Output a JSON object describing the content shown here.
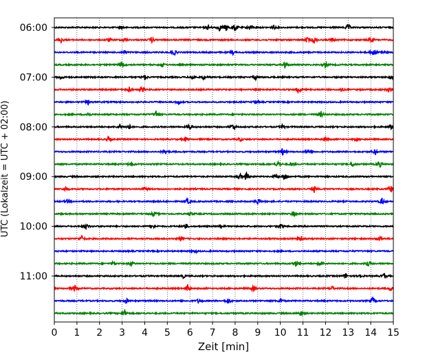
{
  "chart_data": {
    "type": "line",
    "title": "",
    "xlabel": "Zeit  [min]",
    "ylabel": "UTC (Lokalzeit = UTC + 02:00)",
    "xlim": [
      0,
      15
    ],
    "x_ticks": [
      0,
      1,
      2,
      3,
      4,
      5,
      6,
      7,
      8,
      9,
      10,
      11,
      12,
      13,
      14,
      15
    ],
    "grid": "vertical dotted at each minute",
    "trace_interval_min": 15,
    "start_time": "06:00",
    "time_labels": [
      "06:00",
      "07:00",
      "08:00",
      "09:00",
      "10:00",
      "11:00"
    ],
    "trace_colors": [
      "#000000",
      "#ff0000",
      "#0000ff",
      "#008000"
    ],
    "series": [
      {
        "values": [
          [
            3.0,
            0.5
          ],
          [
            6.8,
            0.6
          ],
          [
            7.3,
            0.8
          ],
          [
            7.6,
            0.9
          ],
          [
            8.0,
            1.0
          ],
          [
            8.7,
            0.8
          ],
          [
            9.7,
            0.5
          ],
          [
            13.0,
            0.9
          ]
        ]
      },
      {
        "values": [
          [
            0.3,
            0.6
          ],
          [
            2.4,
            0.5
          ],
          [
            3.1,
            0.5
          ],
          [
            4.3,
            0.7
          ],
          [
            11.2,
            0.6
          ],
          [
            11.5,
            0.8
          ],
          [
            12.3,
            0.5
          ],
          [
            14.0,
            0.7
          ]
        ]
      },
      {
        "values": [
          [
            3.1,
            0.5
          ],
          [
            5.3,
            0.7
          ],
          [
            7.9,
            0.5
          ],
          [
            14.1,
            0.9
          ],
          [
            14.5,
            0.6
          ]
        ]
      },
      {
        "values": [
          [
            3.0,
            0.8
          ],
          [
            4.8,
            0.5
          ],
          [
            10.2,
            0.9
          ],
          [
            12.0,
            0.6
          ]
        ]
      },
      {
        "values": [
          [
            0.3,
            0.6
          ],
          [
            4.0,
            0.6
          ],
          [
            6.1,
            0.7
          ],
          [
            6.6,
            0.5
          ],
          [
            8.9,
            0.6
          ],
          [
            14.9,
            0.5
          ]
        ]
      },
      {
        "values": [
          [
            3.3,
            0.8
          ],
          [
            3.9,
            0.8
          ],
          [
            10.8,
            0.8
          ],
          [
            12.7,
            0.5
          ],
          [
            14.8,
            0.5
          ]
        ]
      },
      {
        "values": [
          [
            1.5,
            0.5
          ],
          [
            5.5,
            0.5
          ],
          [
            8.9,
            0.5
          ]
        ]
      },
      {
        "values": [
          [
            1.5,
            0.5
          ],
          [
            4.5,
            1.0
          ],
          [
            11.8,
            0.7
          ]
        ]
      },
      {
        "values": [
          [
            2.9,
            0.6
          ],
          [
            3.3,
            0.6
          ],
          [
            6.0,
            0.8
          ],
          [
            7.9,
            0.8
          ],
          [
            10.1,
            0.6
          ],
          [
            14.9,
            0.5
          ]
        ]
      },
      {
        "values": [
          [
            2.4,
            0.7
          ],
          [
            5.8,
            0.6
          ],
          [
            8.2,
            0.5
          ],
          [
            12.0,
            0.6
          ],
          [
            13.4,
            0.5
          ]
        ]
      },
      {
        "values": [
          [
            4.9,
            0.6
          ],
          [
            10.1,
            0.9
          ],
          [
            11.2,
            0.5
          ],
          [
            14.2,
            0.7
          ]
        ]
      },
      {
        "values": [
          [
            3.4,
            0.6
          ],
          [
            9.9,
            0.8
          ],
          [
            10.5,
            0.5
          ],
          [
            13.2,
            0.6
          ],
          [
            14.4,
            0.7
          ]
        ]
      },
      {
        "values": [
          [
            8.2,
            0.8
          ],
          [
            8.5,
            1.0
          ],
          [
            9.8,
            0.6
          ],
          [
            10.2,
            1.0
          ]
        ]
      },
      {
        "values": [
          [
            0.5,
            0.6
          ],
          [
            4.0,
            0.5
          ],
          [
            11.5,
            0.8
          ],
          [
            14.9,
            0.9
          ]
        ]
      },
      {
        "values": [
          [
            0.6,
            0.5
          ],
          [
            5.9,
            0.8
          ],
          [
            9.0,
            0.9
          ],
          [
            14.5,
            0.8
          ]
        ]
      },
      {
        "values": [
          [
            4.4,
            0.7
          ],
          [
            6.0,
            0.5
          ],
          [
            10.6,
            0.6
          ]
        ]
      },
      {
        "values": [
          [
            1.4,
            0.7
          ],
          [
            4.4,
            0.5
          ],
          [
            5.8,
            0.7
          ],
          [
            7.4,
            0.5
          ],
          [
            10.0,
            0.6
          ]
        ]
      },
      {
        "values": [
          [
            1.2,
            0.8
          ],
          [
            5.6,
            0.6
          ],
          [
            10.9,
            0.8
          ],
          [
            14.4,
            0.6
          ]
        ]
      },
      {
        "values": [
          [
            6.2,
            0.5
          ]
        ]
      },
      {
        "values": [
          [
            2.6,
            0.5
          ],
          [
            3.4,
            0.6
          ],
          [
            10.7,
            0.8
          ],
          [
            11.8,
            0.8
          ],
          [
            13.9,
            0.6
          ]
        ]
      },
      {
        "values": [
          [
            5.7,
            0.5
          ],
          [
            12.9,
            0.6
          ],
          [
            13.5,
            0.5
          ],
          [
            14.6,
            0.7
          ]
        ]
      },
      {
        "values": [
          [
            0.9,
            0.8
          ],
          [
            5.9,
            0.9
          ],
          [
            8.8,
            0.6
          ],
          [
            12.3,
            0.5
          ],
          [
            14.9,
            0.6
          ]
        ]
      },
      {
        "values": [
          [
            3.2,
            0.6
          ],
          [
            6.4,
            0.6
          ],
          [
            7.7,
            0.7
          ],
          [
            10.0,
            0.5
          ],
          [
            14.1,
            1.0
          ]
        ]
      },
      {
        "values": [
          [
            3.1,
            0.8
          ],
          [
            10.9,
            0.6
          ]
        ]
      }
    ]
  }
}
